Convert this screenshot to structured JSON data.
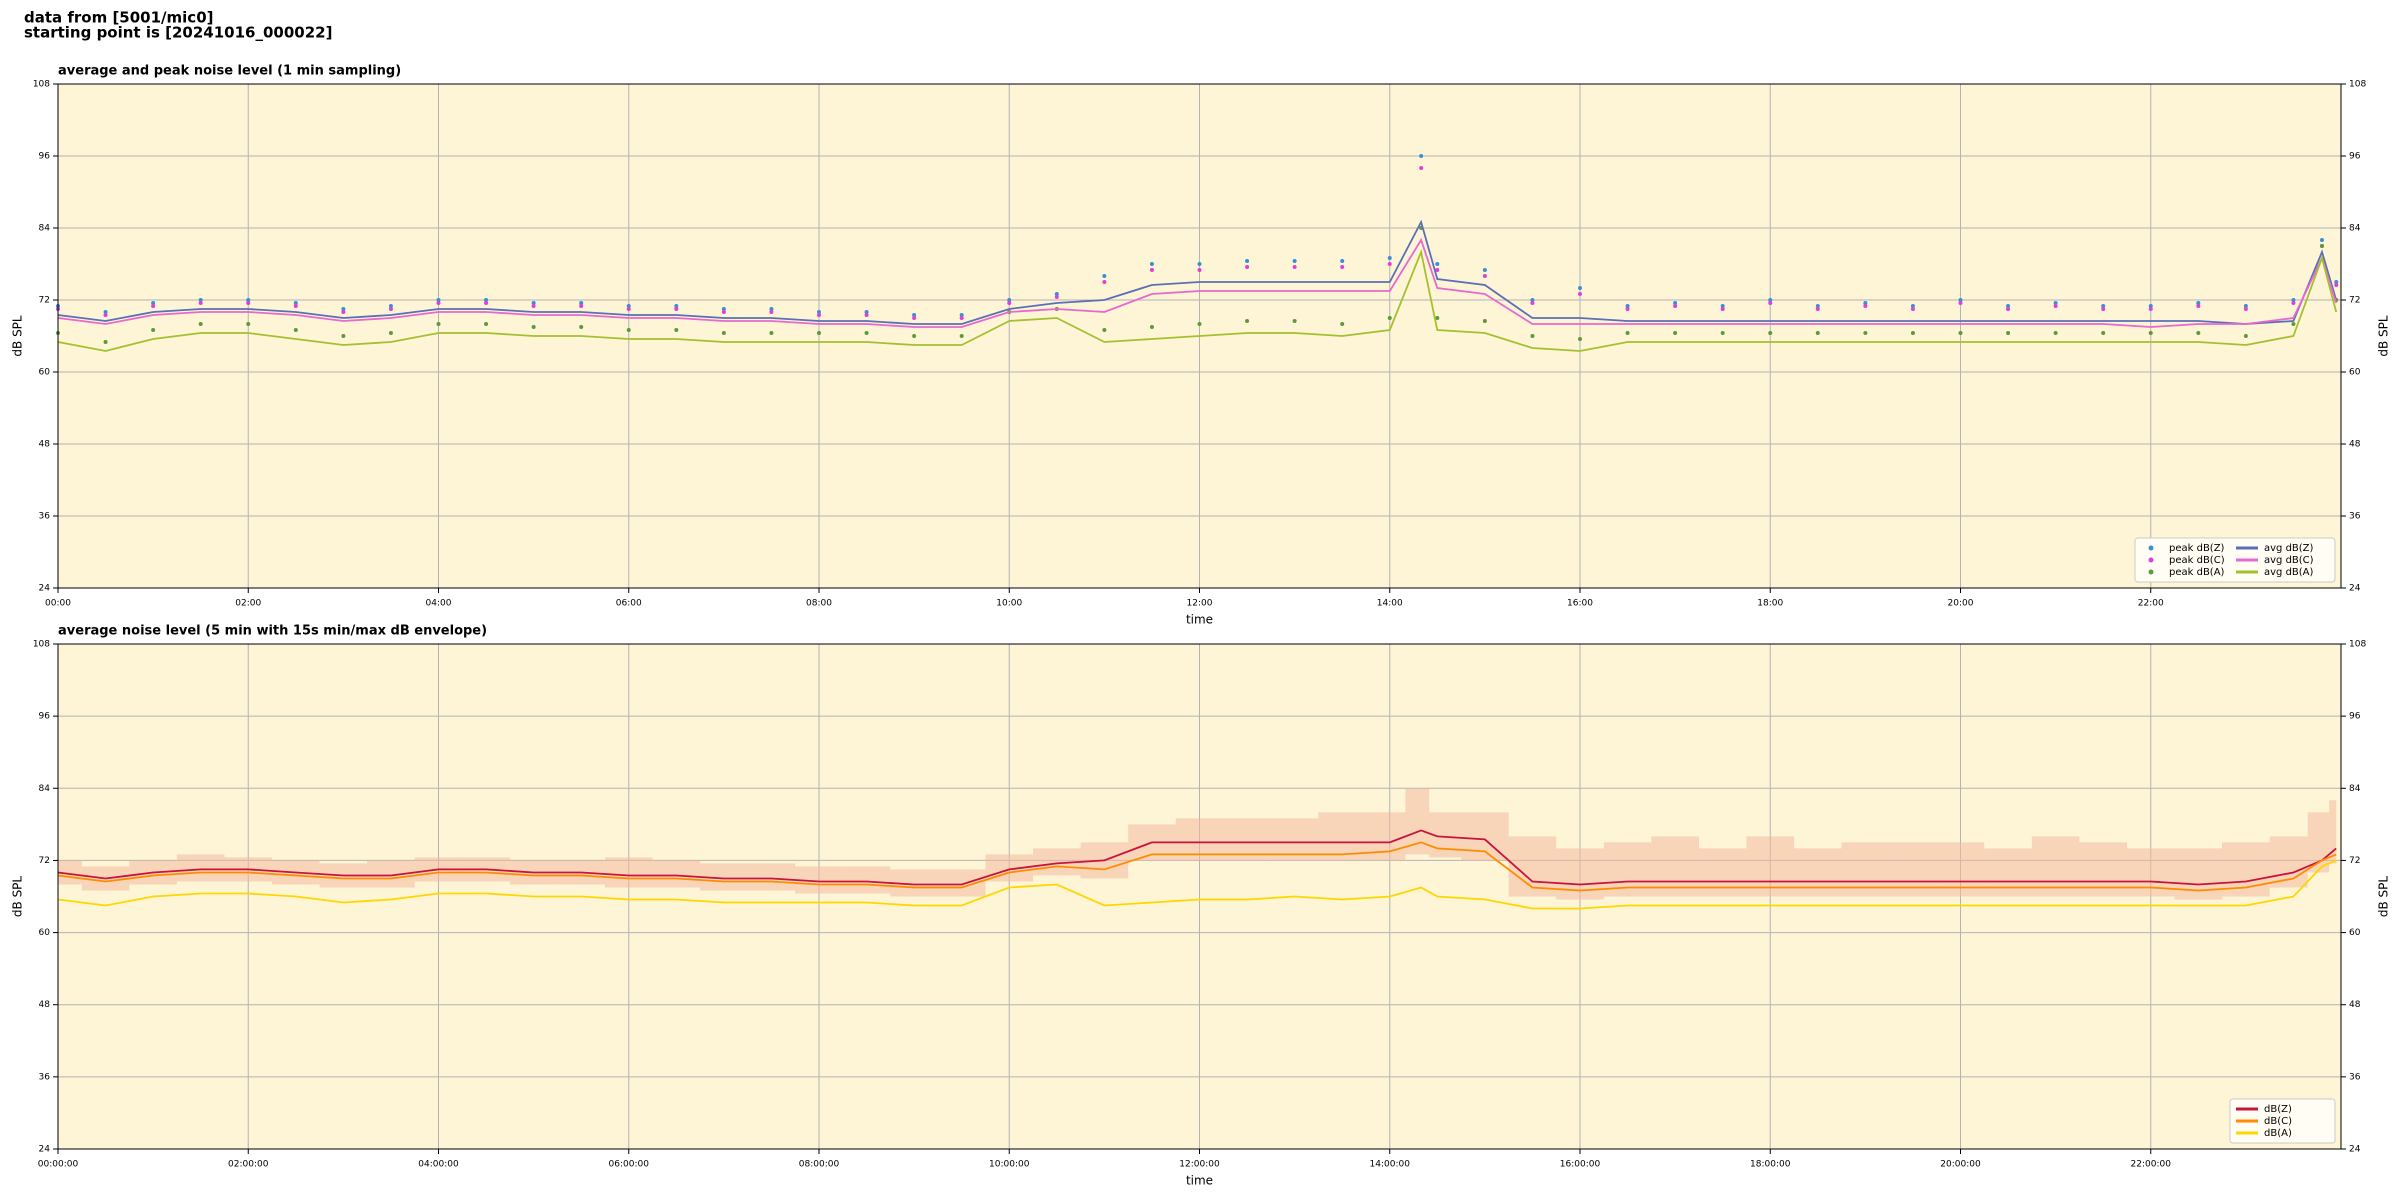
{
  "suptitle": [
    "data from [5001/mic0]",
    "starting point is [20241016_000022]"
  ],
  "chart_data": [
    {
      "type": "line",
      "title": "average and peak noise level (1 min sampling)",
      "xlabel": "time",
      "ylabel": "dB SPL",
      "x": [
        0,
        0.5,
        1,
        1.5,
        2,
        2.5,
        3,
        3.5,
        4,
        4.5,
        5,
        5.5,
        6,
        6.5,
        7,
        7.5,
        8,
        8.5,
        9,
        9.5,
        10,
        10.5,
        11,
        11.5,
        12,
        12.5,
        13,
        13.5,
        14,
        14.33,
        14.5,
        15,
        15.5,
        16,
        16.5,
        17,
        17.5,
        18,
        18.5,
        19,
        19.5,
        20,
        20.5,
        21,
        21.5,
        22,
        22.5,
        23,
        23.5,
        23.8,
        23.95
      ],
      "xlim": [
        0,
        24
      ],
      "ylim": [
        24,
        108
      ],
      "xticks": [
        {
          "value": 0,
          "label": "00:00"
        },
        {
          "value": 2,
          "label": "02:00"
        },
        {
          "value": 4,
          "label": "04:00"
        },
        {
          "value": 6,
          "label": "06:00"
        },
        {
          "value": 8,
          "label": "08:00"
        },
        {
          "value": 10,
          "label": "10:00"
        },
        {
          "value": 12,
          "label": "12:00"
        },
        {
          "value": 14,
          "label": "14:00"
        },
        {
          "value": 16,
          "label": "16:00"
        },
        {
          "value": 18,
          "label": "18:00"
        },
        {
          "value": 20,
          "label": "20:00"
        },
        {
          "value": 22,
          "label": "22:00"
        }
      ],
      "yticks": [
        24,
        36,
        48,
        60,
        72,
        84,
        96,
        108
      ],
      "grid": true,
      "legend": "lower right",
      "legend_columns": 2,
      "series": [
        {
          "name": "peak dB(Z)",
          "color": "#3b8fd4",
          "style": "points",
          "values": [
            71,
            70,
            71.5,
            72,
            72,
            71.5,
            70.5,
            71,
            72,
            72,
            71.5,
            71.5,
            71,
            71,
            70.5,
            70.5,
            70,
            70,
            69.5,
            69.5,
            72,
            73,
            76,
            78,
            78,
            78.5,
            78.5,
            78.5,
            79,
            96,
            78,
            77,
            72,
            74,
            71,
            71.5,
            71,
            72,
            71,
            71.5,
            71,
            72,
            71,
            71.5,
            71,
            71,
            71.5,
            71,
            72,
            82,
            75
          ]
        },
        {
          "name": "peak dB(C)",
          "color": "#e040d8",
          "style": "points",
          "values": [
            70.5,
            69.5,
            71,
            71.5,
            71.5,
            71,
            70,
            70.5,
            71.5,
            71.5,
            71,
            71,
            70.5,
            70.5,
            70,
            70,
            69.5,
            69.5,
            69,
            69,
            71.5,
            72.5,
            75,
            77,
            77,
            77.5,
            77.5,
            77.5,
            78,
            94,
            77,
            76,
            71.5,
            73,
            70.5,
            71,
            70.5,
            71.5,
            70.5,
            71,
            70.5,
            71.5,
            70.5,
            71,
            70.5,
            70.5,
            71,
            70.5,
            71.5,
            81,
            74.5
          ]
        },
        {
          "name": "peak dB(A)",
          "color": "#5c9a3c",
          "style": "points",
          "values": [
            66.5,
            65,
            67,
            68,
            68,
            67,
            66,
            66.5,
            68,
            68,
            67.5,
            67.5,
            67,
            67,
            66.5,
            66.5,
            66.5,
            66.5,
            66,
            66,
            70,
            70.5,
            67,
            67.5,
            68,
            68.5,
            68.5,
            68,
            69,
            84,
            69,
            68.5,
            66,
            65.5,
            66.5,
            66.5,
            66.5,
            66.5,
            66.5,
            66.5,
            66.5,
            66.5,
            66.5,
            66.5,
            66.5,
            66.5,
            66.5,
            66,
            68,
            81,
            72
          ]
        },
        {
          "name": "avg dB(Z)",
          "color": "#5a6fb8",
          "style": "line",
          "values": [
            69.5,
            68.5,
            70,
            70.5,
            70.5,
            70,
            69,
            69.5,
            70.5,
            70.5,
            70,
            70,
            69.5,
            69.5,
            69,
            69,
            68.5,
            68.5,
            68,
            68,
            70.5,
            71.5,
            72,
            74.5,
            75,
            75,
            75,
            75,
            75,
            85,
            75.5,
            74.5,
            69,
            69,
            68.5,
            68.5,
            68.5,
            68.5,
            68.5,
            68.5,
            68.5,
            68.5,
            68.5,
            68.5,
            68.5,
            68.5,
            68.5,
            68,
            68.5,
            80,
            72
          ]
        },
        {
          "name": "avg dB(C)",
          "color": "#e868d0",
          "style": "line",
          "values": [
            69,
            68,
            69.5,
            70,
            70,
            69.5,
            68.5,
            69,
            70,
            70,
            69.5,
            69.5,
            69,
            69,
            68.5,
            68.5,
            68,
            68,
            67.5,
            67.5,
            70,
            70.5,
            70,
            73,
            73.5,
            73.5,
            73.5,
            73.5,
            73.5,
            82,
            74,
            73,
            68,
            68,
            68,
            68,
            68,
            68,
            68,
            68,
            68,
            68,
            68,
            68,
            68,
            67.5,
            68,
            68,
            69,
            79,
            71.5
          ]
        },
        {
          "name": "avg dB(A)",
          "color": "#a4c030",
          "style": "line",
          "values": [
            65,
            63.5,
            65.5,
            66.5,
            66.5,
            65.5,
            64.5,
            65,
            66.5,
            66.5,
            66,
            66,
            65.5,
            65.5,
            65,
            65,
            65,
            65,
            64.5,
            64.5,
            68.5,
            69,
            65,
            65.5,
            66,
            66.5,
            66.5,
            66,
            67,
            80,
            67,
            66.5,
            64,
            63.5,
            65,
            65,
            65,
            65,
            65,
            65,
            65,
            65,
            65,
            65,
            65,
            65,
            65,
            64.5,
            66,
            79,
            70
          ]
        }
      ]
    },
    {
      "type": "line",
      "title": "average noise level (5 min with 15s min/max dB envelope)",
      "xlabel": "time",
      "ylabel": "dB SPL",
      "x": [
        0,
        0.5,
        1,
        1.5,
        2,
        2.5,
        3,
        3.5,
        4,
        4.5,
        5,
        5.5,
        6,
        6.5,
        7,
        7.5,
        8,
        8.5,
        9,
        9.5,
        10,
        10.5,
        11,
        11.5,
        12,
        12.5,
        13,
        13.5,
        14,
        14.33,
        14.5,
        15,
        15.5,
        16,
        16.5,
        17,
        17.5,
        18,
        18.5,
        19,
        19.5,
        20,
        20.5,
        21,
        21.5,
        22,
        22.5,
        23,
        23.5,
        23.8,
        23.95
      ],
      "xlim": [
        0,
        24
      ],
      "ylim": [
        24,
        108
      ],
      "xticks": [
        {
          "value": 0,
          "label": "00:00:00"
        },
        {
          "value": 2,
          "label": "02:00:00"
        },
        {
          "value": 4,
          "label": "04:00:00"
        },
        {
          "value": 6,
          "label": "06:00:00"
        },
        {
          "value": 8,
          "label": "08:00:00"
        },
        {
          "value": 10,
          "label": "10:00:00"
        },
        {
          "value": 12,
          "label": "12:00:00"
        },
        {
          "value": 14,
          "label": "14:00:00"
        },
        {
          "value": 16,
          "label": "16:00:00"
        },
        {
          "value": 18,
          "label": "18:00:00"
        },
        {
          "value": 20,
          "label": "20:00:00"
        },
        {
          "value": 22,
          "label": "22:00:00"
        }
      ],
      "yticks": [
        24,
        36,
        48,
        60,
        72,
        84,
        96,
        108
      ],
      "grid": true,
      "legend": "lower right",
      "legend_columns": 1,
      "envelope": {
        "color": "#f4b8a0",
        "low": [
          68,
          67,
          68,
          68.5,
          68.5,
          68,
          67.5,
          67.5,
          68.5,
          68.5,
          68,
          68,
          67.5,
          67.5,
          67,
          67,
          66.5,
          66.5,
          66,
          66,
          68.5,
          69.5,
          69,
          72,
          72,
          72,
          72,
          72,
          72,
          73,
          72.5,
          72,
          66,
          65.5,
          66,
          66,
          66,
          66,
          66,
          66,
          66,
          66,
          66,
          66,
          66,
          66,
          65.5,
          66,
          67.5,
          70,
          71.5
        ],
        "high": [
          72,
          71,
          72,
          73,
          72.5,
          72,
          71.5,
          72,
          72.5,
          72.5,
          72,
          72,
          72.5,
          72,
          71.5,
          71.5,
          71,
          71,
          70.5,
          70.5,
          73,
          74,
          75,
          78,
          79,
          79,
          79,
          80,
          80,
          84,
          80,
          80,
          76,
          74,
          75,
          76,
          74,
          76,
          74,
          75,
          75,
          75,
          74,
          76,
          75,
          74,
          74,
          75,
          76,
          80,
          82
        ]
      },
      "series": [
        {
          "name": "dB(Z)",
          "color": "#c8143c",
          "style": "line",
          "values": [
            70,
            69,
            70,
            70.5,
            70.5,
            70,
            69.5,
            69.5,
            70.5,
            70.5,
            70,
            70,
            69.5,
            69.5,
            69,
            69,
            68.5,
            68.5,
            68,
            68,
            70.5,
            71.5,
            72,
            75,
            75,
            75,
            75,
            75,
            75,
            77,
            76,
            75.5,
            68.5,
            68,
            68.5,
            68.5,
            68.5,
            68.5,
            68.5,
            68.5,
            68.5,
            68.5,
            68.5,
            68.5,
            68.5,
            68.5,
            68,
            68.5,
            70,
            72,
            74
          ]
        },
        {
          "name": "dB(C)",
          "color": "#ff8c00",
          "style": "line",
          "values": [
            69.5,
            68.5,
            69.5,
            70,
            70,
            69.5,
            69,
            69,
            70,
            70,
            69.5,
            69.5,
            69,
            69,
            68.5,
            68.5,
            68,
            68,
            67.5,
            67.5,
            70,
            71,
            70.5,
            73,
            73,
            73,
            73,
            73,
            73.5,
            75,
            74,
            73.5,
            67.5,
            67,
            67.5,
            67.5,
            67.5,
            67.5,
            67.5,
            67.5,
            67.5,
            67.5,
            67.5,
            67.5,
            67.5,
            67.5,
            67,
            67.5,
            69,
            72,
            73
          ]
        },
        {
          "name": "dB(A)",
          "color": "#ffd700",
          "style": "line",
          "values": [
            65.5,
            64.5,
            66,
            66.5,
            66.5,
            66,
            65,
            65.5,
            66.5,
            66.5,
            66,
            66,
            65.5,
            65.5,
            65,
            65,
            65,
            65,
            64.5,
            64.5,
            67.5,
            68,
            64.5,
            65,
            65.5,
            65.5,
            66,
            65.5,
            66,
            67.5,
            66,
            65.5,
            64,
            64,
            64.5,
            64.5,
            64.5,
            64.5,
            64.5,
            64.5,
            64.5,
            64.5,
            64.5,
            64.5,
            64.5,
            64.5,
            64.5,
            64.5,
            66,
            71,
            72
          ]
        }
      ]
    }
  ]
}
